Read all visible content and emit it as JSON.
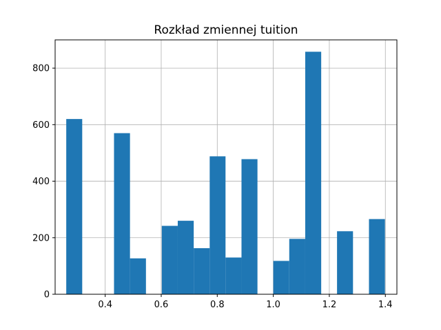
{
  "chart_data": {
    "type": "bar",
    "title": "Rozkład zmiennej tuition",
    "xlabel": "",
    "ylabel": "",
    "xlim": [
      0.2213,
      1.4412
    ],
    "ylim": [
      0,
      900
    ],
    "grid": true,
    "bar_color": "#1f77b4",
    "x_ticks": [
      {
        "value": 0.4,
        "label": "0.4"
      },
      {
        "value": 0.6,
        "label": "0.6"
      },
      {
        "value": 0.8,
        "label": "0.8"
      },
      {
        "value": 1.0,
        "label": "1.0"
      },
      {
        "value": 1.2,
        "label": "1.2"
      },
      {
        "value": 1.4,
        "label": "1.4"
      }
    ],
    "y_ticks": [
      {
        "value": 0,
        "label": "0"
      },
      {
        "value": 200,
        "label": "200"
      },
      {
        "value": 400,
        "label": "400"
      },
      {
        "value": 600,
        "label": "600"
      },
      {
        "value": 800,
        "label": "800"
      }
    ],
    "bins": [
      {
        "start": 0.261,
        "end": 0.318,
        "count": 620
      },
      {
        "start": 0.318,
        "end": 0.375,
        "count": 0
      },
      {
        "start": 0.375,
        "end": 0.4315,
        "count": 0
      },
      {
        "start": 0.4315,
        "end": 0.4885,
        "count": 570
      },
      {
        "start": 0.4885,
        "end": 0.5455,
        "count": 127
      },
      {
        "start": 0.5455,
        "end": 0.602,
        "count": 0
      },
      {
        "start": 0.602,
        "end": 0.659,
        "count": 242
      },
      {
        "start": 0.659,
        "end": 0.716,
        "count": 260
      },
      {
        "start": 0.716,
        "end": 0.773,
        "count": 163
      },
      {
        "start": 0.773,
        "end": 0.8295,
        "count": 488
      },
      {
        "start": 0.8295,
        "end": 0.8865,
        "count": 130
      },
      {
        "start": 0.8865,
        "end": 0.9435,
        "count": 478
      },
      {
        "start": 0.9435,
        "end": 1.0,
        "count": 0
      },
      {
        "start": 1.0,
        "end": 1.057,
        "count": 118
      },
      {
        "start": 1.057,
        "end": 1.114,
        "count": 196
      },
      {
        "start": 1.114,
        "end": 1.171,
        "count": 858
      },
      {
        "start": 1.171,
        "end": 1.2275,
        "count": 0
      },
      {
        "start": 1.2275,
        "end": 1.2845,
        "count": 223
      },
      {
        "start": 1.2845,
        "end": 1.3415,
        "count": 0
      },
      {
        "start": 1.3415,
        "end": 1.3985,
        "count": 266
      }
    ]
  }
}
